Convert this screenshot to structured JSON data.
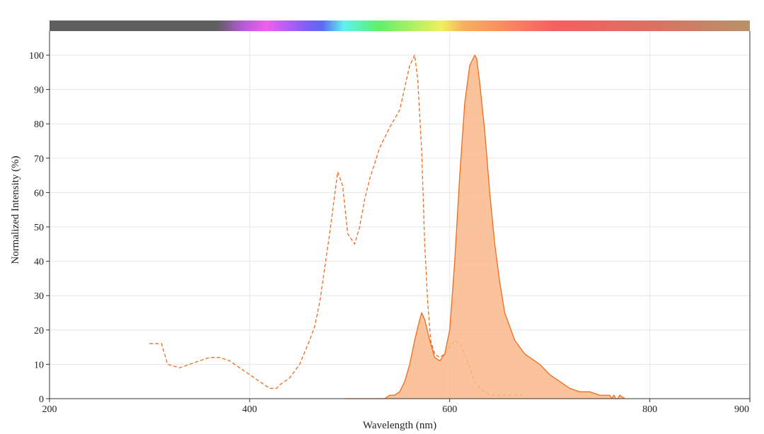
{
  "chart_data": {
    "type": "line",
    "xlabel": "Wavelength (nm)",
    "ylabel": "Normalized Intensity (%)",
    "xlim": [
      200,
      900
    ],
    "ylim": [
      0,
      100
    ],
    "x_ticks": [
      "200",
      "400",
      "600",
      "800",
      "900"
    ],
    "y_ticks": [
      "0",
      "10",
      "20",
      "30",
      "40",
      "50",
      "60",
      "70",
      "80",
      "90",
      "100"
    ],
    "grid": true,
    "spectrum_bar": true,
    "series": [
      {
        "style": "dashed",
        "color": "#f26b1d",
        "fill": "none",
        "x": [
          300,
          312,
          318,
          330,
          340,
          350,
          360,
          370,
          380,
          390,
          400,
          410,
          420,
          427,
          430,
          440,
          450,
          460,
          465,
          470,
          480,
          488,
          493,
          498,
          505,
          510,
          515,
          520,
          530,
          540,
          550,
          560,
          565,
          568,
          572,
          575,
          578,
          581,
          585,
          590,
          595,
          600,
          605,
          610,
          615,
          620,
          625,
          630,
          635,
          640,
          650,
          660,
          670,
          677
        ],
        "y": [
          16,
          16,
          10,
          9,
          10,
          11,
          12,
          12,
          11,
          9,
          7,
          5,
          3,
          3,
          4,
          6,
          10,
          17,
          21,
          28,
          48,
          66,
          62,
          48,
          45,
          50,
          58,
          64,
          73,
          79,
          84,
          97,
          100,
          93,
          72,
          45,
          28,
          17,
          13,
          12,
          13,
          15,
          17,
          16,
          13,
          9,
          5,
          3,
          2,
          1,
          1,
          1,
          1,
          1
        ]
      },
      {
        "style": "solid",
        "color": "#f26b1d",
        "fill": "#f9b88a",
        "x": [
          495,
          535,
          540,
          545,
          550,
          555,
          560,
          565,
          570,
          572,
          575,
          580,
          585,
          590,
          595,
          600,
          605,
          610,
          615,
          620,
          625,
          627,
          630,
          635,
          640,
          645,
          650,
          655,
          660,
          665,
          670,
          675,
          680,
          690,
          700,
          710,
          720,
          730,
          740,
          750,
          760,
          762,
          764,
          766,
          768,
          770,
          775
        ],
        "y": [
          0,
          0,
          1,
          1,
          2,
          5,
          10,
          17,
          23,
          25,
          23,
          17,
          12,
          11,
          13,
          20,
          40,
          65,
          86,
          97,
          100,
          99,
          92,
          78,
          60,
          45,
          34,
          25,
          21,
          17,
          15,
          13,
          12,
          10,
          7,
          5,
          3,
          2,
          2,
          1,
          1,
          0,
          1,
          0,
          0,
          1,
          0
        ]
      }
    ]
  }
}
